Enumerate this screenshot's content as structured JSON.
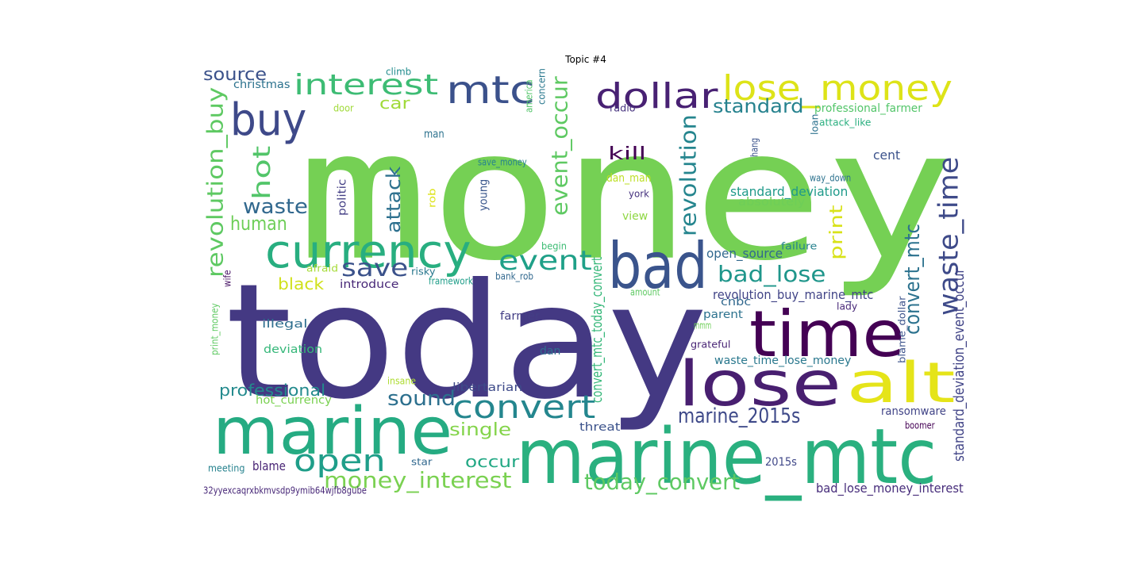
{
  "title": "Topic #4",
  "words": [
    {
      "text": "money",
      "color": "#75d054"
    },
    {
      "text": "today",
      "color": "#443983"
    },
    {
      "text": "marine_mtc",
      "color": "#2ab07f"
    },
    {
      "text": "time",
      "color": "#440154"
    },
    {
      "text": "lose",
      "color": "#481f70"
    },
    {
      "text": "marine",
      "color": "#25ab82"
    },
    {
      "text": "alt",
      "color": "#e5e419"
    },
    {
      "text": "bad",
      "color": "#3a548c"
    },
    {
      "text": "currency",
      "color": "#28ae80"
    },
    {
      "text": "lose_money",
      "color": "#dde318"
    },
    {
      "text": "dollar",
      "color": "#482173"
    },
    {
      "text": "mtc",
      "color": "#3b518b"
    },
    {
      "text": "buy",
      "color": "#3e4989"
    },
    {
      "text": "interest",
      "color": "#3dbc74"
    },
    {
      "text": "waste_time",
      "color": "#3e4a89"
    },
    {
      "text": "convert",
      "color": "#24868e"
    },
    {
      "text": "open",
      "color": "#1f9e89"
    },
    {
      "text": "event",
      "color": "#1fa088"
    },
    {
      "text": "save",
      "color": "#3b528b"
    },
    {
      "text": "revolution_buy",
      "color": "#5ec962"
    },
    {
      "text": "hot",
      "color": "#52c569"
    },
    {
      "text": "revolution",
      "color": "#25858e"
    },
    {
      "text": "event_occur",
      "color": "#5ec962"
    },
    {
      "text": "bad_lose",
      "color": "#1f968b"
    },
    {
      "text": "convert_mtc",
      "color": "#2c728e"
    },
    {
      "text": "money_interest",
      "color": "#7ad151"
    },
    {
      "text": "marine_2015s",
      "color": "#3e4989"
    },
    {
      "text": "today_convert",
      "color": "#5ec962"
    },
    {
      "text": "attack",
      "color": "#2d708e"
    },
    {
      "text": "waste",
      "color": "#31688e"
    },
    {
      "text": "standard",
      "color": "#26828e"
    },
    {
      "text": "print",
      "color": "#d8e219"
    },
    {
      "text": "sound",
      "color": "#2d708e"
    },
    {
      "text": "human",
      "color": "#6ece58"
    },
    {
      "text": "source",
      "color": "#3b528b"
    },
    {
      "text": "professional",
      "color": "#238a8d"
    },
    {
      "text": "single",
      "color": "#84d44b"
    },
    {
      "text": "occur",
      "color": "#22a884"
    },
    {
      "text": "car",
      "color": "#a0da39"
    },
    {
      "text": "kill",
      "color": "#440154"
    },
    {
      "text": "black",
      "color": "#d0e11c"
    },
    {
      "text": "convert_mtc_today_convert",
      "color": "#35b779"
    },
    {
      "text": "standard_deviation_event_occur",
      "color": "#414487"
    },
    {
      "text": "standard_deviation",
      "color": "#1f9a8a"
    },
    {
      "text": "revolution_buy_marine_mtc",
      "color": "#414487"
    },
    {
      "text": "waste_time_lose_money",
      "color": "#2a788e"
    },
    {
      "text": "bad_lose_money_interest",
      "color": "#472d7b"
    },
    {
      "text": "professional_farmer",
      "color": "#52c569"
    },
    {
      "text": "open_source",
      "color": "#31688e"
    },
    {
      "text": "absolutely",
      "color": "#6ece58"
    },
    {
      "text": "cent",
      "color": "#3b528b"
    },
    {
      "text": "blame",
      "color": "#482475"
    },
    {
      "text": "christmas",
      "color": "#2c728e"
    },
    {
      "text": "introduce",
      "color": "#482878"
    },
    {
      "text": "hot_currency",
      "color": "#7ad151"
    },
    {
      "text": "illegal",
      "color": "#2e6e8e"
    },
    {
      "text": "deviation",
      "color": "#35b779"
    },
    {
      "text": "farmer",
      "color": "#433e85"
    },
    {
      "text": "libertarian",
      "color": "#3e4a89"
    },
    {
      "text": "ransomware",
      "color": "#414487"
    },
    {
      "text": "threat",
      "color": "#3b528b"
    },
    {
      "text": "dan",
      "color": "#2e6e8e"
    },
    {
      "text": "dan_man",
      "color": "#bddf26"
    },
    {
      "text": "parent",
      "color": "#2c728e"
    },
    {
      "text": "view",
      "color": "#8fd744"
    },
    {
      "text": "2015s",
      "color": "#3f4788"
    },
    {
      "text": "cnbc",
      "color": "#31688e"
    },
    {
      "text": "politic",
      "color": "#433e85"
    },
    {
      "text": "young",
      "color": "#39568c"
    },
    {
      "text": "wife",
      "color": "#471365"
    },
    {
      "text": "man",
      "color": "#2c728e"
    },
    {
      "text": "rob",
      "color": "#dde318"
    },
    {
      "text": "york",
      "color": "#46327e"
    },
    {
      "text": "way_down",
      "color": "#2c728e"
    },
    {
      "text": "grateful",
      "color": "#482475"
    },
    {
      "text": "mmm",
      "color": "#6ece58"
    },
    {
      "text": "framework",
      "color": "#1f9e89"
    },
    {
      "text": "bank_rob",
      "color": "#31688e"
    },
    {
      "text": "save_money",
      "color": "#26828e"
    },
    {
      "text": "failure",
      "color": "#26828e"
    },
    {
      "text": "hang",
      "color": "#3b528b"
    },
    {
      "text": "loan",
      "color": "#2c728e"
    },
    {
      "text": "attack_like",
      "color": "#29af7f"
    },
    {
      "text": "radio",
      "color": "#46327e"
    },
    {
      "text": "door",
      "color": "#a0da39"
    },
    {
      "text": "climb",
      "color": "#228c8d"
    },
    {
      "text": "america",
      "color": "#52c569"
    },
    {
      "text": "concern",
      "color": "#2a788e"
    },
    {
      "text": "begin",
      "color": "#3dbc74"
    },
    {
      "text": "afraid",
      "color": "#a5db36"
    },
    {
      "text": "risky",
      "color": "#2a788e"
    },
    {
      "text": "amount",
      "color": "#5ec962"
    },
    {
      "text": "lady",
      "color": "#482878"
    },
    {
      "text": "blame_dollar",
      "color": "#3b528b"
    },
    {
      "text": "print_money",
      "color": "#5ec962"
    },
    {
      "text": "insane",
      "color": "#addc30"
    },
    {
      "text": "boomer",
      "color": "#440154"
    },
    {
      "text": "meeting",
      "color": "#26828e"
    },
    {
      "text": "star",
      "color": "#31688e"
    },
    {
      "text": "32yyexcaqrxbkmvsdp9ymib64wjfb8gube",
      "color": "#482878"
    }
  ]
}
